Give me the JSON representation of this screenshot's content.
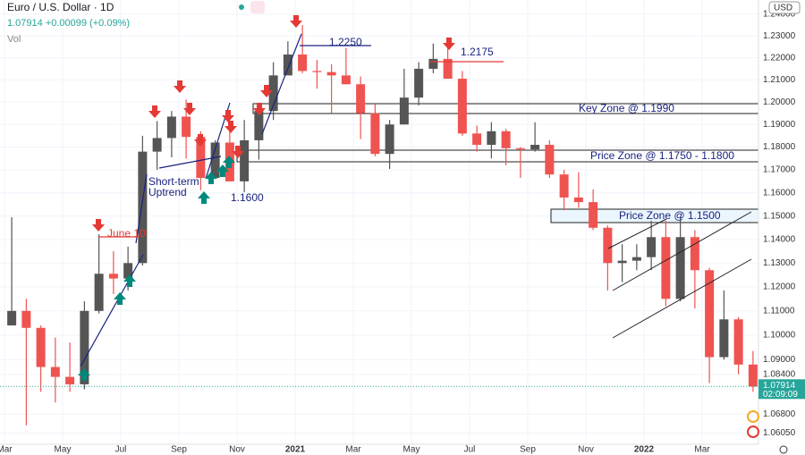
{
  "chart_data": {
    "type": "candlestick",
    "title": "Euro / U.S. Dollar · 1D",
    "subtitle": "1.07914 +0.00099 (+0.09%)",
    "volume_label": "Vol",
    "currency": "USD",
    "log_scale": true,
    "up_color": "#555555",
    "down_color": "#ef5350",
    "categories": [
      "Mar",
      null,
      null,
      null,
      "May",
      null,
      null,
      null,
      "Jul",
      null,
      null,
      null,
      "Sep",
      null,
      null,
      null,
      "Nov",
      null,
      null,
      null,
      "2021",
      null,
      null,
      null,
      "Mar",
      null,
      null,
      null,
      "May",
      null,
      null,
      null,
      "Jul",
      null,
      null,
      null,
      "Sep",
      null,
      null,
      null,
      "Nov",
      null,
      null,
      null,
      "2022",
      null,
      null,
      null,
      "Mar",
      null,
      null,
      null
    ],
    "open": [
      1.104,
      1.11,
      1.103,
      1.087,
      1.083,
      1.08,
      1.11,
      1.1255,
      1.1235,
      1.13,
      1.178,
      1.184,
      1.1935,
      1.1845,
      1.1665,
      1.182,
      1.165,
      1.183,
      1.196,
      1.212,
      1.2215,
      1.214,
      1.2135,
      1.212,
      1.208,
      1.195,
      1.177,
      1.19,
      1.202,
      1.215,
      1.2195,
      1.2105,
      1.186,
      1.181,
      1.187,
      1.1795,
      1.179,
      1.181,
      1.168,
      1.158,
      1.156,
      1.145,
      1.13,
      1.131,
      1.1325,
      1.141,
      1.115,
      1.141,
      1.127,
      1.091,
      1.1065,
      1.088
    ],
    "high": [
      1.1495,
      1.115,
      1.104,
      1.099,
      1.097,
      1.114,
      1.1422,
      1.135,
      1.137,
      1.185,
      1.1915,
      1.196,
      1.2011,
      1.187,
      1.183,
      1.188,
      1.192,
      1.1965,
      1.218,
      1.2275,
      1.235,
      1.219,
      1.217,
      1.2245,
      1.2115,
      1.199,
      1.192,
      1.215,
      1.218,
      1.2265,
      1.2255,
      1.214,
      1.1895,
      1.191,
      1.188,
      1.18,
      1.191,
      1.183,
      1.17,
      1.169,
      1.1615,
      1.146,
      1.138,
      1.138,
      1.148,
      1.148,
      1.1495,
      1.144,
      1.128,
      1.1185,
      1.1075,
      1.0935
    ],
    "low": [
      1.104,
      1.0636,
      1.077,
      1.0727,
      1.077,
      1.078,
      1.109,
      1.117,
      1.1185,
      1.129,
      1.17,
      1.1755,
      1.175,
      1.1612,
      1.166,
      1.165,
      1.1603,
      1.1745,
      1.192,
      1.212,
      1.213,
      1.206,
      1.195,
      1.208,
      1.1835,
      1.176,
      1.1704,
      1.19,
      1.1985,
      1.213,
      1.2105,
      1.185,
      1.178,
      1.175,
      1.172,
      1.1665,
      1.178,
      1.1665,
      1.1525,
      1.1535,
      1.144,
      1.1185,
      1.122,
      1.127,
      1.127,
      1.112,
      1.114,
      1.111,
      1.0805,
      1.09,
      1.084,
      1.077
    ],
    "close": [
      1.11,
      1.103,
      1.087,
      1.083,
      1.08,
      1.11,
      1.1255,
      1.1235,
      1.13,
      1.178,
      1.184,
      1.1935,
      1.1845,
      1.1665,
      1.182,
      1.165,
      1.183,
      1.196,
      1.212,
      1.2215,
      1.214,
      1.2135,
      1.212,
      1.208,
      1.195,
      1.177,
      1.19,
      1.202,
      1.215,
      1.2195,
      1.2105,
      1.186,
      1.181,
      1.187,
      1.1795,
      1.179,
      1.181,
      1.168,
      1.158,
      1.156,
      1.145,
      1.13,
      1.131,
      1.1325,
      1.141,
      1.115,
      1.141,
      1.127,
      1.091,
      1.1065,
      1.088,
      1.0791
    ],
    "ylim": [
      1.0568,
      1.2466
    ],
    "yticks": [
      {
        "value": 1.24,
        "label": "1.24000"
      },
      {
        "value": 1.23,
        "label": "1.23000"
      },
      {
        "value": 1.22,
        "label": "1.22000"
      },
      {
        "value": 1.21,
        "label": "1.21000"
      },
      {
        "value": 1.2,
        "label": "1.20000"
      },
      {
        "value": 1.19,
        "label": "1.19000"
      },
      {
        "value": 1.18,
        "label": "1.18000"
      },
      {
        "value": 1.17,
        "label": "1.17000"
      },
      {
        "value": 1.16,
        "label": "1.16000"
      },
      {
        "value": 1.15,
        "label": "1.15000"
      },
      {
        "value": 1.14,
        "label": "1.14000"
      },
      {
        "value": 1.13,
        "label": "1.13000"
      },
      {
        "value": 1.12,
        "label": "1.12000"
      },
      {
        "value": 1.11,
        "label": "1.11000"
      },
      {
        "value": 1.1,
        "label": "1.10000"
      },
      {
        "value": 1.09,
        "label": "1.09000"
      },
      {
        "value": 1.084,
        "label": "1.08400"
      },
      {
        "value": 1.068,
        "label": "1.06800"
      },
      {
        "value": 1.0605,
        "label": "1.06050"
      }
    ],
    "last_price": {
      "value": 1.07914,
      "label": "1.07914"
    },
    "countdown": "02:09:09",
    "grid": true,
    "annotations": {
      "short_term": "Short-term",
      "uptrend": "Uptrend",
      "low_1160": "1.1600",
      "high_12250": "1.2250",
      "high_12175": "1.2175",
      "june10": "June 10",
      "key_zone": "Key Zone @ 1.1990",
      "zone_1175": "Price Zone @ 1.1750 - 1.1800",
      "zone_1150": "Price Zone @ 1.1500"
    }
  }
}
